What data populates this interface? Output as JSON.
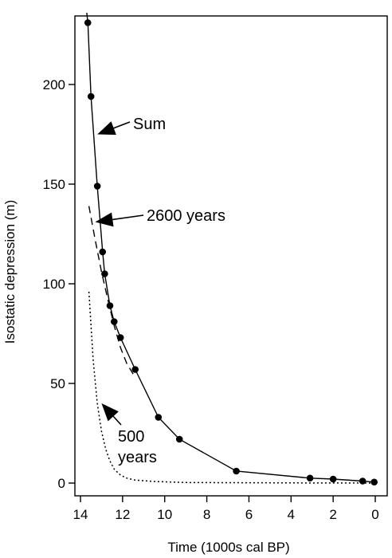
{
  "chart_data": {
    "type": "line",
    "xlabel": "Time (1000s cal BP)",
    "ylabel": "Isostatic depression (m)",
    "xlim": [
      14,
      0
    ],
    "ylim": [
      0,
      230
    ],
    "x_reversed": true,
    "x_ticks": [
      14,
      12,
      10,
      8,
      6,
      4,
      2,
      0
    ],
    "y_ticks": [
      0,
      50,
      100,
      150,
      200
    ],
    "grid": false,
    "observations": {
      "marker": "filled-circle",
      "points": [
        [
          13.65,
          231
        ],
        [
          13.5,
          194
        ],
        [
          13.2,
          149
        ],
        [
          12.95,
          116
        ],
        [
          12.85,
          105
        ],
        [
          12.6,
          89
        ],
        [
          12.4,
          81
        ],
        [
          12.1,
          73
        ],
        [
          11.4,
          57
        ],
        [
          10.3,
          33
        ],
        [
          9.3,
          22
        ],
        [
          6.6,
          6
        ],
        [
          3.1,
          2.5
        ],
        [
          2.0,
          2.0
        ],
        [
          0.6,
          1.0
        ],
        [
          0.05,
          0.5
        ]
      ]
    },
    "series": [
      {
        "style": "solid",
        "color": "#000000",
        "x": [
          13.7,
          13.65,
          13.5,
          13.2,
          12.95,
          12.85,
          12.6,
          12.4,
          12.1,
          11.4,
          10.3,
          9.3,
          6.6,
          3.1,
          2.0,
          0.6,
          0.05
        ],
        "y": [
          236,
          231,
          194,
          149,
          116,
          105,
          89,
          81,
          73,
          57,
          33,
          22,
          6,
          2.5,
          2.0,
          1.0,
          0.5
        ]
      },
      {
        "style": "dashed",
        "color": "#000000",
        "x": [
          13.6,
          13.3,
          13.0,
          12.7,
          12.4,
          12.1,
          11.8,
          11.4
        ],
        "y": [
          139,
          122,
          106,
          92,
          79,
          68,
          60,
          53
        ]
      },
      {
        "style": "dotted",
        "color": "#000000",
        "x": [
          13.6,
          13.4,
          13.2,
          13.0,
          12.8,
          12.6,
          12.4,
          12.1,
          11.8,
          11.4,
          10.5,
          9.0,
          7.0,
          4.0,
          1.0,
          0.05
        ],
        "y": [
          96,
          62,
          40,
          26,
          17,
          11,
          7,
          4,
          2.5,
          1.5,
          0.8,
          0.3,
          0.2,
          0.1,
          0.05,
          0.0
        ]
      }
    ],
    "annotations": [
      {
        "text": "Sum",
        "point_to": [
          13.2,
          175
        ]
      },
      {
        "text": "2600 years",
        "point_to": [
          13.3,
          131
        ]
      },
      {
        "text": "500 years",
        "lines": [
          "500",
          "years"
        ],
        "point_to": [
          13.0,
          40
        ]
      }
    ]
  }
}
